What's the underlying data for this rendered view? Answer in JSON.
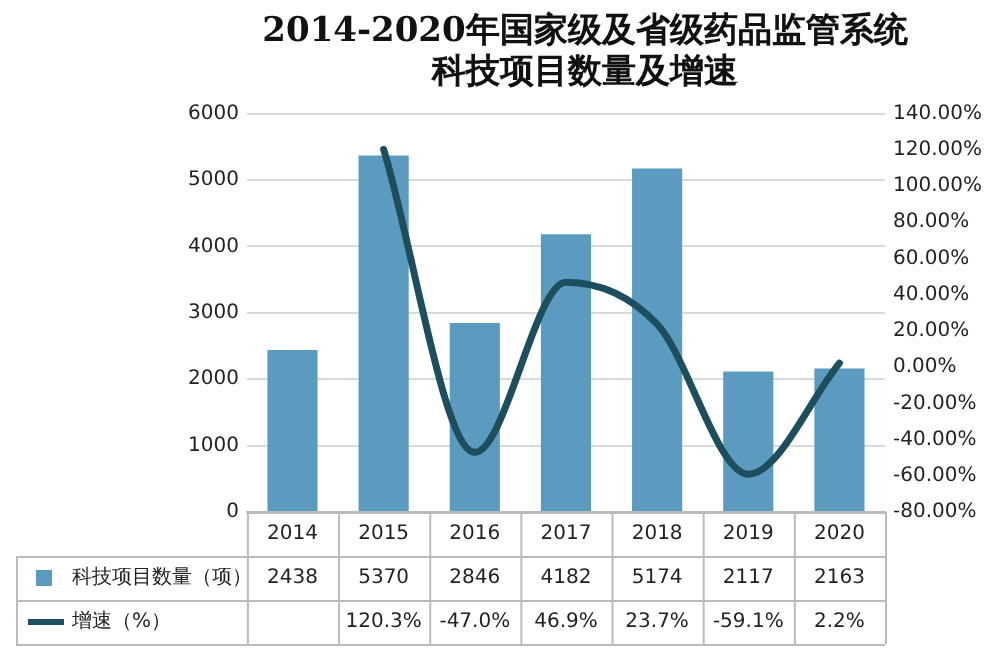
{
  "chart_data": {
    "type": "bar",
    "title": "2014-2020年国家级及省级药品监管系统科技项目数量及增速",
    "categories": [
      "2014",
      "2015",
      "2016",
      "2017",
      "2018",
      "2019",
      "2020"
    ],
    "series": [
      {
        "name": "科技项目数量（项）",
        "color": "#5b9bc0",
        "values": [
          2438,
          5370,
          2846,
          4182,
          5174,
          2117,
          2163
        ],
        "value_labels": [
          "2438",
          "5370",
          "2846",
          "4182",
          "5174",
          "2117",
          "2163"
        ]
      },
      {
        "name": "增速（%）",
        "type": "line",
        "axis": "y2",
        "color": "#1c4e5e",
        "values": [
          null,
          120.3,
          -47.0,
          46.9,
          23.7,
          -59.1,
          2.2
        ],
        "value_labels": [
          null,
          "120.3%",
          "-47.0%",
          "46.9%",
          "23.7%",
          "-59.1%",
          "2.2%"
        ]
      }
    ],
    "ylim": [
      0,
      6000
    ],
    "yticks": [
      0,
      1000,
      2000,
      3000,
      4000,
      5000,
      6000
    ],
    "y2lim": [
      -80,
      140
    ],
    "y2ticks": [
      {
        "value": -80,
        "label": "-80.00%"
      },
      {
        "value": -60,
        "label": "-60.00%"
      },
      {
        "value": -40,
        "label": "-40.00%"
      },
      {
        "value": -20,
        "label": "-20.00%"
      },
      {
        "value": 0,
        "label": "0.00%"
      },
      {
        "value": 20,
        "label": "20.00%"
      },
      {
        "value": 40,
        "label": "40.00%"
      },
      {
        "value": 60,
        "label": "60.00%"
      },
      {
        "value": 80,
        "label": "80.00%"
      },
      {
        "value": 100,
        "label": "100.00%"
      },
      {
        "value": 120,
        "label": "120.00%"
      },
      {
        "value": 140,
        "label": "140.00%"
      }
    ],
    "grid": "y",
    "legend": "bottom",
    "marker": "none",
    "line_style": "solid"
  }
}
